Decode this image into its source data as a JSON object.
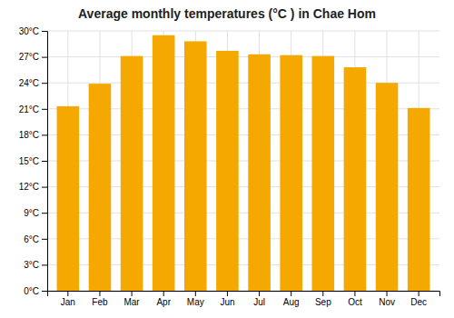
{
  "chart_data": {
    "type": "bar",
    "title": "Average monthly temperatures (°C ) in Chae Hom",
    "categories": [
      "Jan",
      "Feb",
      "Mar",
      "Apr",
      "May",
      "Jun",
      "Jul",
      "Aug",
      "Sep",
      "Oct",
      "Nov",
      "Dec"
    ],
    "values": [
      21.3,
      23.9,
      27.1,
      29.5,
      28.8,
      27.7,
      27.3,
      27.2,
      27.1,
      25.8,
      24.0,
      21.1
    ],
    "color": "#F5A800",
    "ylim": [
      0,
      30
    ],
    "yticks": [
      {
        "value": 0,
        "label": "0°C"
      },
      {
        "value": 3,
        "label": "3°C"
      },
      {
        "value": 6,
        "label": "6°C"
      },
      {
        "value": 9,
        "label": "9°C"
      },
      {
        "value": 12,
        "label": "12°C"
      },
      {
        "value": 15,
        "label": "15°C"
      },
      {
        "value": 18,
        "label": "18°C"
      },
      {
        "value": 21,
        "label": "21°C"
      },
      {
        "value": 24,
        "label": "24°C"
      },
      {
        "value": 27,
        "label": "27°C"
      },
      {
        "value": 30,
        "label": "30°C"
      }
    ],
    "grid": true
  }
}
